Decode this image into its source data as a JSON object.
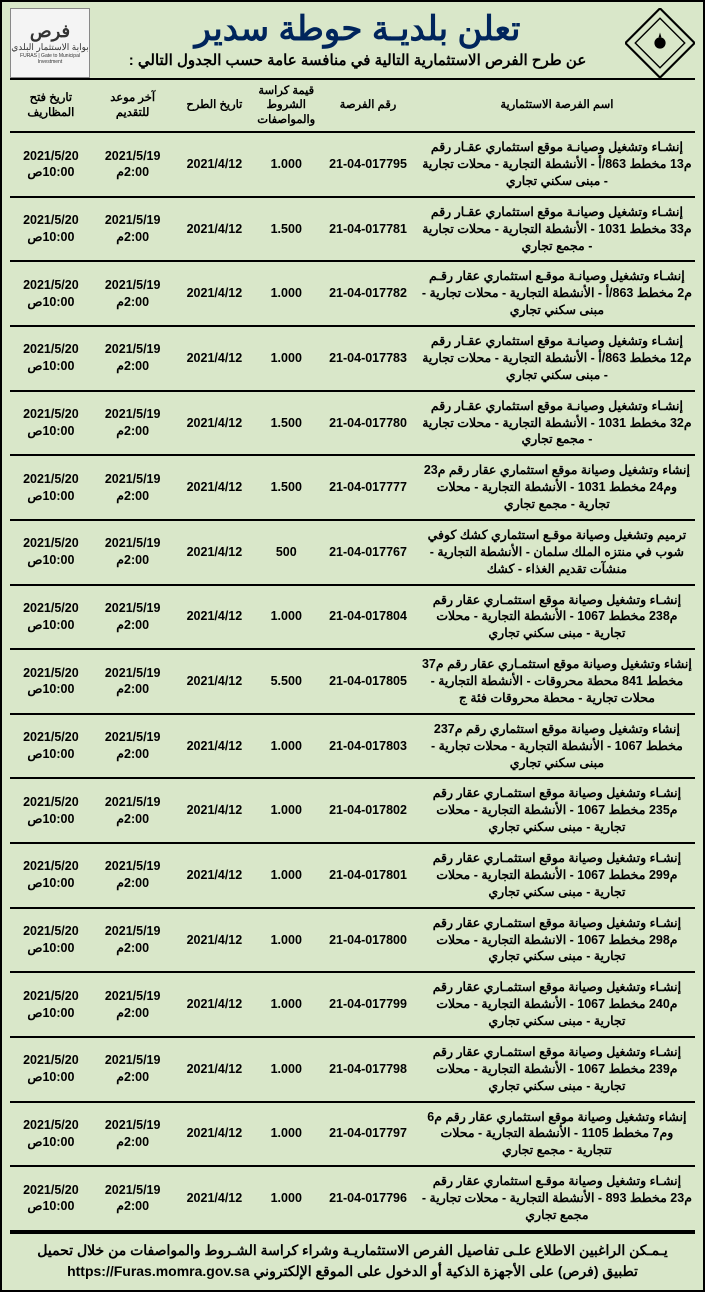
{
  "colors": {
    "page_bg": "#d9e7c9",
    "border": "#000000",
    "title": "#00255c",
    "text": "#000000"
  },
  "logos": {
    "right_alt": "شعار البلدية",
    "left_line1": "فرص",
    "left_line2": "بوابة الاستثمار البلدي",
    "left_line3": "FURAS | Gate to Municipal Investment"
  },
  "header": {
    "title": "تعلن بلديـة حوطة سدير",
    "subtitle": "عن طرح الفرص الاستثمارية التالية في منافسة عامة حسب الجدول التالي :"
  },
  "columns": {
    "name": "اسم الفرصة الاستثمارية",
    "number": "رقم الفرصة",
    "price": "قيمة كراسة الشروط والمواصفات",
    "proposal_date": "تاريخ الطرح",
    "deadline": "آخر موعد للتقديم",
    "opening": "تاريخ فتح المظاريف"
  },
  "common": {
    "proposal_date": "2021/4/12",
    "deadline_date": "2021/5/19",
    "deadline_time": "2:00م",
    "opening_date": "2021/5/20",
    "opening_time": "10:00ص"
  },
  "rows": [
    {
      "name": "إنشـاء وتشغيل وصيانـة موقع استثماري عقـار رقم م13 مخطط 863/أ - الأنشطة التجارية - محلات تجارية - مبنى سكني تجاري",
      "number": "21-04-017795",
      "price": "1.000"
    },
    {
      "name": "إنشـاء وتشغيل وصيانـة موقع استثماري عقـار رقم م33 مخطط 1031 - الأنشطة التجارية - محلات تجارية - مجمع تجاري",
      "number": "21-04-017781",
      "price": "1.500"
    },
    {
      "name": "إنشـاء وتشغيل وصيانـة موقـع استثماري عقار رقـم م2 مخطط 863/أ - الأنشطة التجارية - محلات تجارية - مبنى سكني تجاري",
      "number": "21-04-017782",
      "price": "1.000"
    },
    {
      "name": "إنشـاء وتشغيل وصيانـة موقع استثماري عقـار رقم م12 مخطط 863/أ - الأنشطة التجارية - محلات تجارية - مبنى سكني تجاري",
      "number": "21-04-017783",
      "price": "1.000"
    },
    {
      "name": "إنشـاء وتشغيل وصيانـة موقع استثماري عقـار رقم م32 مخطط 1031 - الأنشطة التجارية - محلات تجارية - مجمع تجاري",
      "number": "21-04-017780",
      "price": "1.500"
    },
    {
      "name": "إنشاء وتشغيل وصيانة موقع استثماري عقار رقم م23 وم24 مخطط 1031 - الأنشطة التجارية - محلات تجارية - مجمع تجاري",
      "number": "21-04-017777",
      "price": "1.500"
    },
    {
      "name": "ترميم وتشغيل وصيانة موقـع استثماري كشك كوفي شوب في منتزه الملك سلمان - الأنشطة التجارية - منشآت تقديم الغذاء - كشك",
      "number": "21-04-017767",
      "price": "500"
    },
    {
      "name": "إنشـاء وتشغيل وصيانة موقع استثمـاري عقار رقم م238 مخطط 1067 - الأنشطة التجارية - محلات تجارية - مبنى سكني تجاري",
      "number": "21-04-017804",
      "price": "1.000"
    },
    {
      "name": "إنشاء وتشغيل وصيانة موقع استثمـاري عقار رقم م37 مخطط 841 محطة محروقات - الأنشطة التجارية - محلات تجارية - محطة محروقات فئة ج",
      "number": "21-04-017805",
      "price": "5.500"
    },
    {
      "name": "إنشاء وتشغيل وصيانة موقع استثماري رقم م237 مخطط 1067 - الأنشطة التجارية - محلات تجارية - مبنى سكني تجاري",
      "number": "21-04-017803",
      "price": "1.000"
    },
    {
      "name": "إنشـاء وتشغيل وصيانة موقع استثمـاري عقار رقم م235 مخطط 1067 - الأنشطة التجارية - محلات تجارية - مبنى سكني تجاري",
      "number": "21-04-017802",
      "price": "1.000"
    },
    {
      "name": "إنشـاء وتشغيل وصيانة موقع استثمـاري عقار رقم م299 مخطط 1067 - الأنشطة التجارية - محلات تجارية - مبنى سكني تجاري",
      "number": "21-04-017801",
      "price": "1.000"
    },
    {
      "name": "إنشـاء وتشغيل وصيانة موقع استثمـاري عقار رقم م298 مخطط 1067 - الانشطة التجارية - محلات تجارية - مبنى سكني تجاري",
      "number": "21-04-017800",
      "price": "1.000"
    },
    {
      "name": "إنشـاء وتشغيل وصيانة موقع استثمـاري عقار رقم م240 مخطط 1067 - الأنشطة التجارية - محلات تجارية - مبنى سكني تجاري",
      "number": "21-04-017799",
      "price": "1.000"
    },
    {
      "name": "إنشـاء وتشغيل وصيانة موقع استثمـاري عقار رقم م239 مخطط 1067 - الأنشطة التجارية - محلات تجارية - مبنى سكني تجاري",
      "number": "21-04-017798",
      "price": "1.000"
    },
    {
      "name": "إنشاء وتشغيل وصيانة موقع استثماري عقار رقم م6 وم7 مخطط 1105 - الأنشطة التجارية - محلات تتجارية - مجمع تجاري",
      "number": "21-04-017797",
      "price": "1.000"
    },
    {
      "name": "إنشـاء وتشغيل وصيانة موقـع استثماري عقار رقم م23 مخطط 893 - الأنشطة التجارية - محلات تجارية - مجمع تجاري",
      "number": "21-04-017796",
      "price": "1.000"
    }
  ],
  "footer": {
    "line1": "يـمـكن الراغبين الاطلاع علـى تفاصيل الفرص الاستثماريـة وشراء كراسة الشـروط والمواصفات من خلال تحميل",
    "line2_pre": "تطبيق (فرص) على الأجهزة الذكية أو الدخول على الموقع الإلكتروني ",
    "url": "https://Furas.momra.gov.sa"
  }
}
